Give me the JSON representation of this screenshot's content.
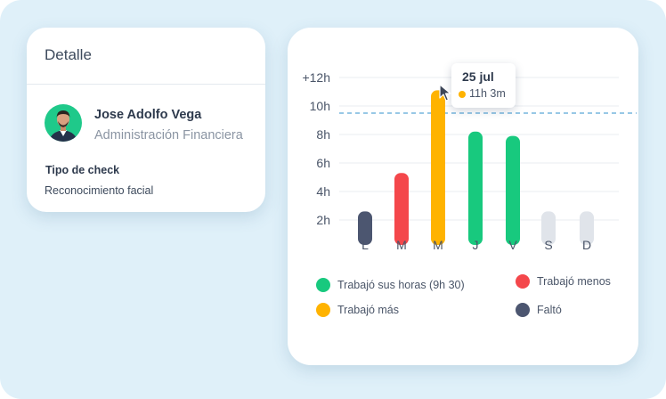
{
  "detail": {
    "title": "Detalle",
    "name": "Jose Adolfo Vega",
    "department": "Administración Financiera",
    "check_type_label": "Tipo de check",
    "check_type_value": "Reconocimiento facial"
  },
  "tooltip": {
    "date": "25 jul",
    "value": "11h 3m"
  },
  "legend": [
    {
      "label": "Trabajó sus horas (9h 30)",
      "color": "#18c97e"
    },
    {
      "label": "Trabajó menos",
      "color": "#f4474b"
    },
    {
      "label": "Trabajó más",
      "color": "#ffb300"
    },
    {
      "label": "Faltó",
      "color": "#4c5670"
    }
  ],
  "colors": {
    "accent_green": "#18c97e",
    "red": "#f4474b",
    "orange": "#ffb300",
    "dark": "#4c5670",
    "empty": "#e0e4ea",
    "reference_line": "#5aa7d6",
    "avatar_bg": "#1fc98a"
  },
  "chart_data": {
    "type": "bar",
    "categories": [
      "L",
      "M",
      "M",
      "J",
      "V",
      "S",
      "D"
    ],
    "values": [
      2.6,
      5.3,
      11.1,
      8.2,
      7.9,
      2.6,
      2.6
    ],
    "statuses": [
      "Faltó",
      "Trabajó menos",
      "Trabajó más",
      "Trabajó sus horas (9h 30)",
      "Trabajó sus horas (9h 30)",
      "",
      ""
    ],
    "bar_colors": [
      "#4c5670",
      "#f4474b",
      "#ffb300",
      "#18c97e",
      "#18c97e",
      "#e0e4ea",
      "#e0e4ea"
    ],
    "y_ticks": [
      "2h",
      "4h",
      "6h",
      "8h",
      "10h",
      "+12h"
    ],
    "y_tick_values": [
      2,
      4,
      6,
      8,
      10,
      12
    ],
    "ylim": [
      0,
      12
    ],
    "reference_line": 9.5,
    "grid": true,
    "xlabel": "",
    "ylabel": "",
    "title": ""
  }
}
